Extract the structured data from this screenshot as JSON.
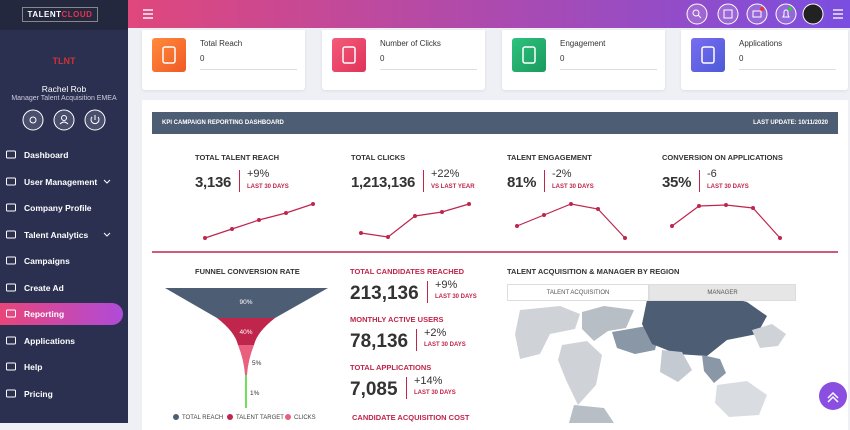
{
  "brand": {
    "part1": "TALENT",
    "part2": "CLOUD"
  },
  "user": {
    "name": "Rachel Rob",
    "role": "Manager Talent Acquisition EMEA"
  },
  "nav": [
    "Dashboard",
    "User Management",
    "Company Profile",
    "Talent Analytics",
    "Campaigns",
    "Create Ad",
    "Reporting",
    "Applications",
    "Help",
    "Pricing"
  ],
  "nav_active": "Reporting",
  "stat_cards": [
    {
      "label": "Total Reach",
      "value": "0"
    },
    {
      "label": "Number of Clicks",
      "value": "0"
    },
    {
      "label": "Engagement",
      "value": "0"
    },
    {
      "label": "Applications",
      "value": "0"
    }
  ],
  "dashboard": {
    "title": "KPI CAMPAIGN REPORTING DASHBOARD",
    "last_update": "LAST UPDATE: 10/11/2020"
  },
  "kpis": [
    {
      "title": "TOTAL TALENT REACH",
      "value": "3,136",
      "change": "+9%",
      "period": "LAST 30 DAYS",
      "trend": [
        2,
        11,
        20,
        27,
        36
      ]
    },
    {
      "title": "TOTAL CLICKS",
      "value": "1,213,136",
      "change": "+22%",
      "period": "VS LAST YEAR",
      "trend": [
        7,
        3,
        24,
        28,
        36
      ]
    },
    {
      "title": "TALENT ENGAGEMENT",
      "value": "81%",
      "change": "-2%",
      "period": "LAST 30 DAYS",
      "trend": [
        14,
        25,
        36,
        31,
        2
      ]
    },
    {
      "title": "CONVERSION ON APPLICATIONS",
      "value": "35%",
      "change": "-6",
      "period": "LAST 30 DAYS",
      "trend": [
        14,
        34,
        35,
        32,
        2
      ]
    }
  ],
  "funnel": {
    "title": "FUNNEL CONVERSION RATE",
    "stages": [
      "90%",
      "40%",
      "5%",
      "1%"
    ],
    "legend": [
      "TOTAL REACH",
      "TALENT TARGET",
      "CLICKS"
    ]
  },
  "metrics": [
    {
      "title": "TOTAL CANDIDATES REACHED",
      "value": "213,136",
      "change": "+9%",
      "period": "LAST 30 DAYS"
    },
    {
      "title": "MONTHLY ACTIVE USERS",
      "value": "78,136",
      "change": "+2%",
      "period": "LAST 30 DAYS"
    },
    {
      "title": "TOTAL APPLICATIONS",
      "value": "7,085",
      "change": "+14%",
      "period": "LAST 30 DAYS"
    }
  ],
  "metrics_next": "CANDIDATE ACQUISITION COST",
  "region": {
    "title": "TALENT ACQUISITION & MANAGER BY REGION",
    "tabs": [
      "TALENT ACQUISITION",
      "MANAGER"
    ]
  }
}
